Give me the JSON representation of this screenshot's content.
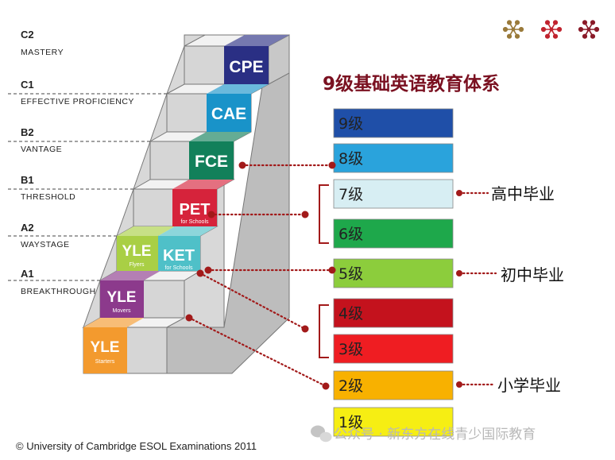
{
  "title": "9级基础英语教育体系",
  "cefr_levels": [
    {
      "code": "C2",
      "name": "MASTERY"
    },
    {
      "code": "C1",
      "name": "EFFECTIVE PROFICIENCY"
    },
    {
      "code": "B2",
      "name": "VANTAGE"
    },
    {
      "code": "B1",
      "name": "THRESHOLD"
    },
    {
      "code": "A2",
      "name": "WAYSTAGE"
    },
    {
      "code": "A1",
      "name": "BREAKTHROUGH"
    }
  ],
  "exams": {
    "cpe": {
      "label": "CPE"
    },
    "cae": {
      "label": "CAE"
    },
    "fce": {
      "label": "FCE"
    },
    "pet": {
      "label": "PET",
      "sub": "for Schools"
    },
    "ket": {
      "label": "KET",
      "sub": "for Schools"
    },
    "yle_flyers": {
      "label": "YLE",
      "sub": "Flyers"
    },
    "yle_movers": {
      "label": "YLE",
      "sub": "Movers"
    },
    "yle_starters": {
      "label": "YLE",
      "sub": "Starters"
    }
  },
  "grades": [
    {
      "label": "9级",
      "color": "#1f4fa8"
    },
    {
      "label": "8级",
      "color": "#2aa3dc"
    },
    {
      "label": "7级",
      "color": "#d7eef3"
    },
    {
      "label": "6级",
      "color": "#1ea84b"
    },
    {
      "label": "5级",
      "color": "#8ccd3c"
    },
    {
      "label": "4级",
      "color": "#c4121d"
    },
    {
      "label": "3级",
      "color": "#ef1d22"
    },
    {
      "label": "2级",
      "color": "#f8b100"
    },
    {
      "label": "1级",
      "color": "#f6ee13"
    }
  ],
  "milestones": {
    "high_school": "高中毕业",
    "middle_school": "初中毕业",
    "primary_school": "小学毕业"
  },
  "colors": {
    "cpe": "#2a2f84",
    "cae": "#1993c9",
    "fce": "#12805a",
    "pet": "#d6233b",
    "ket": "#4fc0c8",
    "yle_flyers": "#a9cf45",
    "yle_movers": "#8c3a8c",
    "yle_starters": "#f39a2e",
    "connector": "#a21a1a",
    "title": "#7a1020"
  },
  "copyright": "© University of Cambridge ESOL Examinations 2011",
  "watermark": "公众号 · 新东方在线青少国际教育"
}
